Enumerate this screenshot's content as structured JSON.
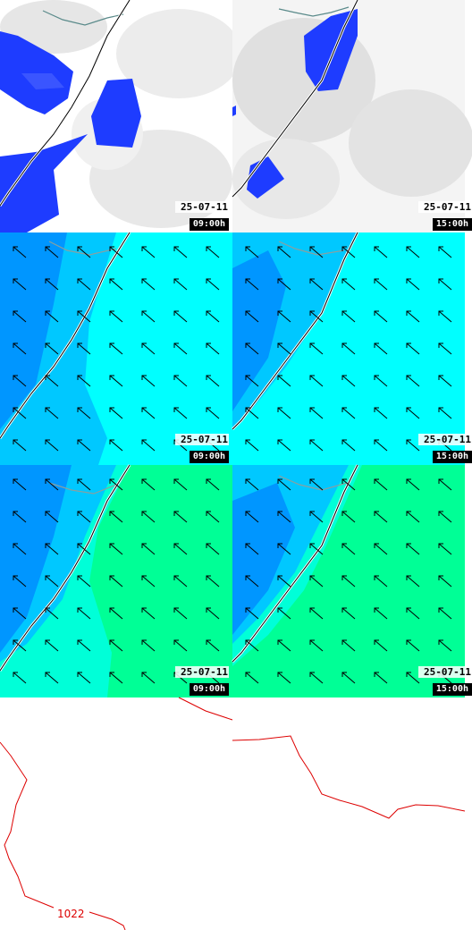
{
  "panels": [
    {
      "row": "cloud",
      "date": "25-07-11",
      "time": "09:00h"
    },
    {
      "row": "cloud",
      "date": "25-07-11",
      "time": "15:00h"
    },
    {
      "row": "wind",
      "date": "25-07-11",
      "time": "09:00h"
    },
    {
      "row": "wind",
      "date": "25-07-11",
      "time": "15:00h"
    },
    {
      "row": "wind2",
      "date": "25-07-11",
      "time": "09:00h"
    },
    {
      "row": "wind2",
      "date": "25-07-11",
      "time": "15:00h"
    },
    {
      "row": "pressure"
    },
    {
      "row": "pressure"
    }
  ],
  "isobar_label": "1022",
  "colors": {
    "cloud_blue": "#1e3cff",
    "cloud_grey": "#d9d9d9",
    "wind_cyan": "#00ffff",
    "wind_light_blue": "#00c8ff",
    "wind_mid_blue": "#0096ff",
    "wind_green": "#00ff96",
    "isobar_red": "#dd0000"
  }
}
